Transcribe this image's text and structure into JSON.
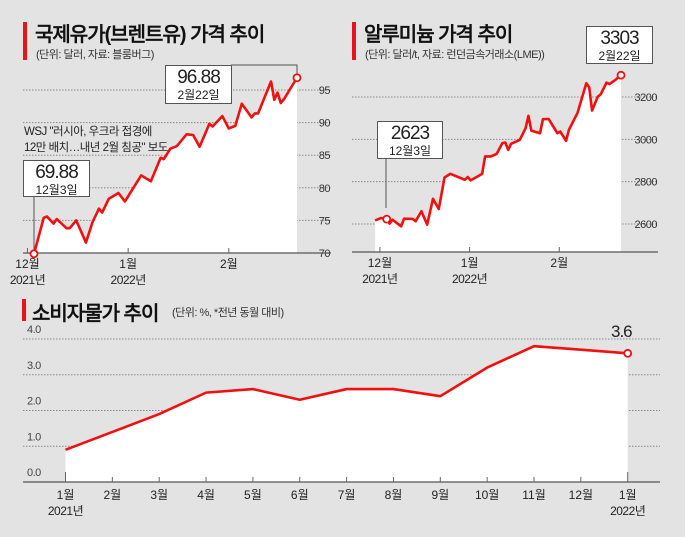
{
  "colors": {
    "line": "#f01010",
    "fill": "#ffffff",
    "background": "#e3e3e3",
    "accent_bar": "#e5151b"
  },
  "chart_data": [
    {
      "type": "area",
      "title": "국제유가(브렌트유) 가격 추이",
      "subtitle": "(단위: 달러, 자료: 블룸버그)",
      "ylim": [
        70,
        97.5
      ],
      "yticks": [
        70,
        75,
        80,
        85,
        90,
        95
      ],
      "grid": true,
      "xticks": [
        {
          "date": "2021-12-01",
          "month": "12월",
          "year": "2021년"
        },
        {
          "date": "2022-01-01",
          "month": "1월",
          "year": "2022년"
        },
        {
          "date": "2022-02-01",
          "month": "2월",
          "year": ""
        }
      ],
      "annotation": "WSJ \"러시아, 우크라 접경에 12만 배치…내년 2월 침공\" 보도",
      "annotation_lines": [
        "WSJ \"러시아, 우크라 접경에",
        "12만 배치…내년 2월 침공\" 보도"
      ],
      "callouts": [
        {
          "value": "69.88",
          "date": "12월3일"
        },
        {
          "value": "96.88",
          "date": "2월22일"
        }
      ],
      "x": [
        "2021-12-03",
        "2021-12-06",
        "2021-12-07",
        "2021-12-09",
        "2021-12-10",
        "2021-12-13",
        "2021-12-14",
        "2021-12-16",
        "2021-12-19",
        "2021-12-21",
        "2021-12-23",
        "2021-12-24",
        "2021-12-26",
        "2021-12-29",
        "2021-12-31",
        "2022-01-05",
        "2022-01-08",
        "2022-01-11",
        "2022-01-12",
        "2022-01-14",
        "2022-01-16",
        "2022-01-19",
        "2022-01-21",
        "2022-01-23",
        "2022-01-26",
        "2022-01-27",
        "2022-01-30",
        "2022-02-01",
        "2022-02-03",
        "2022-02-05",
        "2022-02-08",
        "2022-02-09",
        "2022-02-10",
        "2022-02-14",
        "2022-02-15",
        "2022-02-16",
        "2022-02-17",
        "2022-02-18",
        "2022-02-22"
      ],
      "values": [
        69.88,
        75.4,
        75.6,
        74.5,
        75.2,
        73.8,
        73.8,
        75.0,
        71.6,
        74.7,
        76.8,
        76.2,
        78.3,
        79.2,
        77.9,
        81.9,
        81.0,
        84.6,
        84.4,
        86.0,
        86.4,
        88.2,
        88.1,
        86.3,
        89.8,
        89.4,
        91.0,
        89.1,
        89.5,
        92.9,
        90.8,
        91.4,
        91.4,
        96.3,
        93.5,
        94.6,
        93.0,
        93.6,
        96.88
      ]
    },
    {
      "type": "area",
      "title": "알루미늄 가격 추이",
      "subtitle": "(단위: 달러/t, 자료: 런던금속거래소(LME))",
      "ylim": [
        2470,
        3330
      ],
      "yticks": [
        2600,
        2800,
        3000,
        3200
      ],
      "grid": true,
      "xticks": [
        {
          "date": "2021-12-01",
          "month": "12월",
          "year": "2021년"
        },
        {
          "date": "2022-01-01",
          "month": "1월",
          "year": "2022년"
        },
        {
          "date": "2022-02-01",
          "month": "2월",
          "year": ""
        }
      ],
      "callouts": [
        {
          "value": "2623",
          "date": "12월3일"
        },
        {
          "value": "3303",
          "date": "2월22일"
        }
      ],
      "x": [
        "2021-11-29",
        "2021-12-01",
        "2021-12-03",
        "2021-12-04",
        "2021-12-05",
        "2021-12-08",
        "2021-12-09",
        "2021-12-12",
        "2021-12-13",
        "2021-12-15",
        "2021-12-17",
        "2021-12-19",
        "2021-12-21",
        "2021-12-23",
        "2021-12-25",
        "2021-12-30",
        "2021-12-31",
        "2022-01-01",
        "2022-01-05",
        "2022-01-06",
        "2022-01-08",
        "2022-01-10",
        "2022-01-12",
        "2022-01-13",
        "2022-01-14",
        "2022-01-15",
        "2022-01-18",
        "2022-01-20",
        "2022-01-21",
        "2022-01-22",
        "2022-01-25",
        "2022-01-26",
        "2022-01-28",
        "2022-01-31",
        "2022-02-01",
        "2022-02-03",
        "2022-02-04",
        "2022-02-07",
        "2022-02-10",
        "2022-02-11",
        "2022-02-12",
        "2022-02-14",
        "2022-02-15",
        "2022-02-17",
        "2022-02-18",
        "2022-02-20",
        "2022-02-22"
      ],
      "values": [
        2617,
        2628,
        2623,
        2602,
        2620,
        2589,
        2625,
        2624,
        2613,
        2660,
        2597,
        2719,
        2671,
        2820,
        2837,
        2809,
        2822,
        2806,
        2837,
        2919,
        2919,
        2931,
        2982,
        2985,
        2950,
        2979,
        2997,
        3052,
        3111,
        3041,
        3029,
        3095,
        3096,
        3029,
        3037,
        2993,
        3045,
        3126,
        3265,
        3246,
        3136,
        3202,
        3213,
        3268,
        3261,
        3280,
        3303
      ]
    },
    {
      "type": "area",
      "title": "소비자물가 추이",
      "subtitle": "(단위: %, *전년 동월 대비)",
      "ylim": [
        0,
        4.0
      ],
      "yticks": [
        "0.0",
        "1.0",
        "2.0",
        "3.0",
        "4.0"
      ],
      "grid": true,
      "categories": [
        "1월",
        "2월",
        "3월",
        "4월",
        "5월",
        "6월",
        "7월",
        "8월",
        "9월",
        "10월",
        "11월",
        "12월",
        "1월"
      ],
      "year_labels": {
        "first": "2021년",
        "last": "2022년"
      },
      "values": [
        0.9,
        1.4,
        1.9,
        2.5,
        2.6,
        2.3,
        2.6,
        2.6,
        2.4,
        3.2,
        3.8,
        3.7,
        3.6
      ],
      "callouts": [
        {
          "value": "3.6"
        }
      ]
    }
  ]
}
